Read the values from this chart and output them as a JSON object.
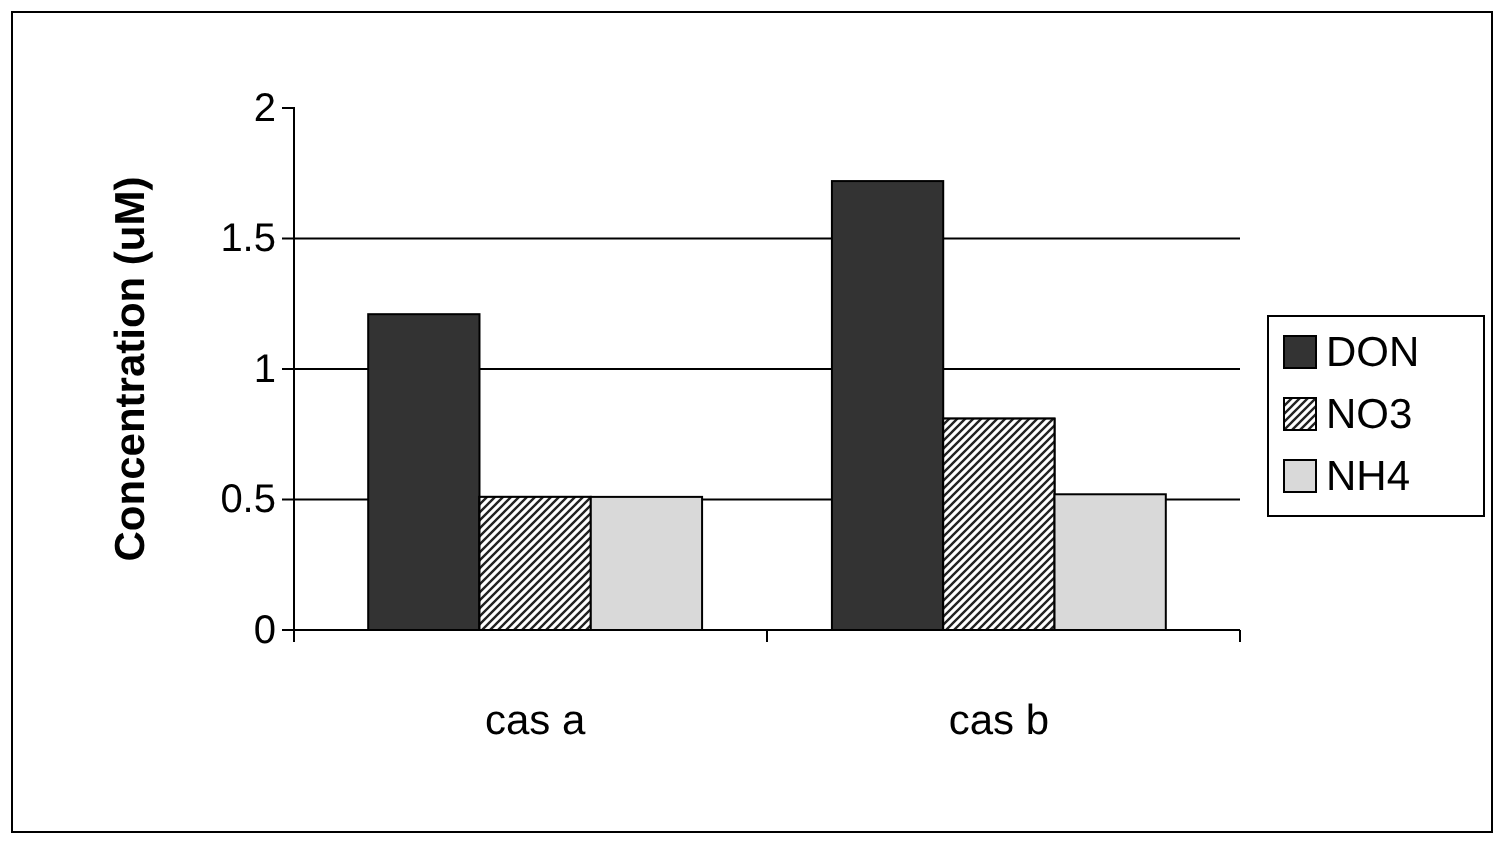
{
  "chart_data": {
    "type": "bar",
    "ylabel": "Concentration (uM)",
    "categories": [
      "cas a",
      "cas b"
    ],
    "series": [
      {
        "name": "DON",
        "color": "#333333",
        "values": [
          1.21,
          1.72
        ]
      },
      {
        "name": "NO3",
        "color": "#808080",
        "values": [
          0.51,
          0.81
        ]
      },
      {
        "name": "NH4",
        "color": "#d9d9d9",
        "values": [
          0.51,
          0.52
        ]
      }
    ],
    "ylim": [
      0,
      2
    ],
    "yticks": [
      0,
      0.5,
      1,
      1.5,
      2
    ],
    "grid": "y",
    "legend": "right"
  }
}
